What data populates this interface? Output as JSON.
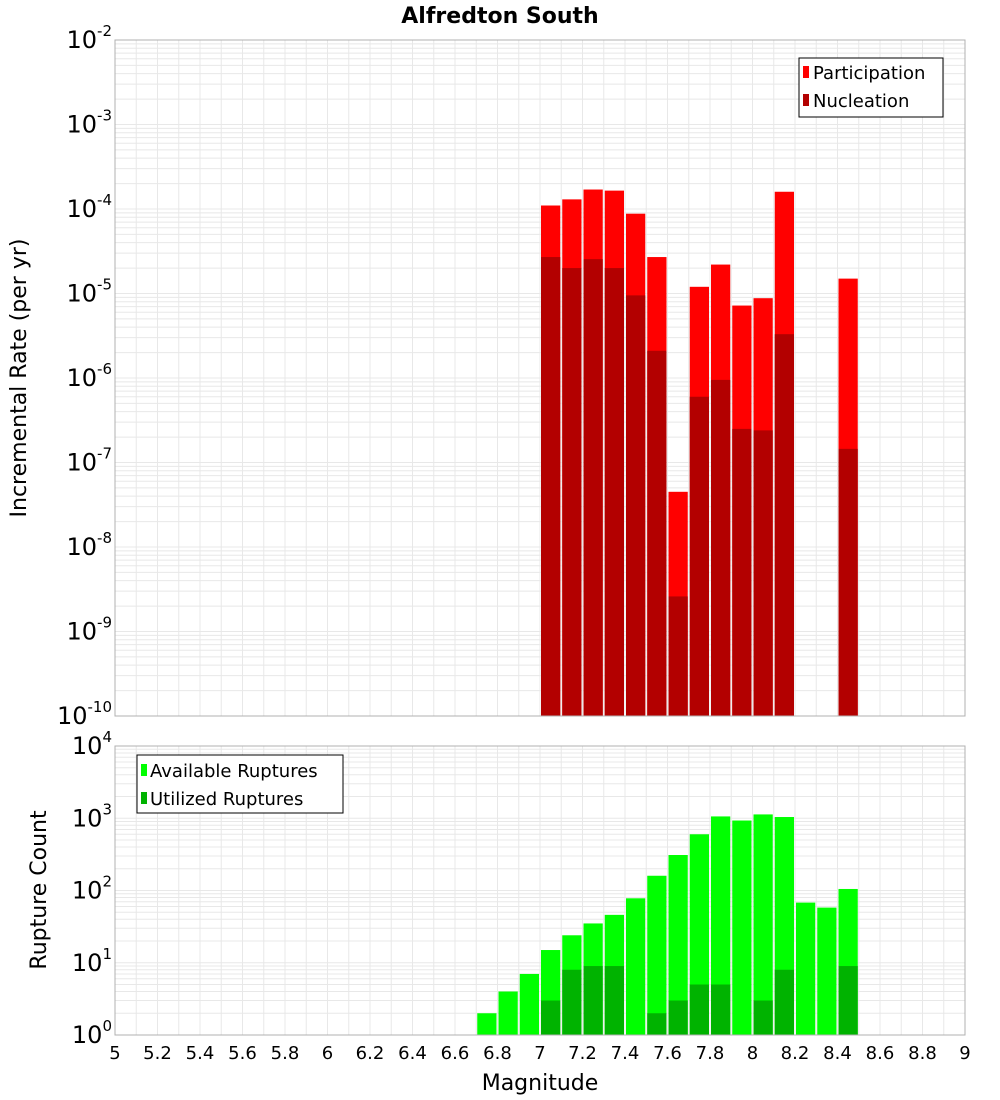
{
  "colors": {
    "participation": "#ff0000",
    "nucleation": "#b30000",
    "available": "#00ff00",
    "utilized": "#00b300",
    "grid": "#e8e8e8",
    "frame": "#b0b0b0"
  },
  "chart_data": [
    {
      "type": "bar",
      "title": "Alfredton South",
      "xlabel": "Magnitude",
      "ylabel": "Incremental Rate (per yr)",
      "yscale": "log",
      "ylim_exp": [
        -10,
        -2
      ],
      "xlim": [
        5,
        9
      ],
      "bin_width": 0.1,
      "legend": [
        "Participation",
        "Nucleation"
      ],
      "legend_position": "top-right",
      "series": [
        {
          "name": "Participation",
          "x": [
            7.05,
            7.15,
            7.25,
            7.35,
            7.45,
            7.55,
            7.65,
            7.75,
            7.85,
            7.95,
            8.05,
            8.15,
            8.45
          ],
          "values": [
            0.00011,
            0.00013,
            0.00017,
            0.000165,
            8.8e-05,
            2.7e-05,
            4.5e-08,
            1.2e-05,
            2.2e-05,
            7.2e-06,
            8.8e-06,
            0.00016,
            1.5e-05
          ]
        },
        {
          "name": "Nucleation",
          "x": [
            7.05,
            7.15,
            7.25,
            7.35,
            7.45,
            7.55,
            7.65,
            7.75,
            7.85,
            7.95,
            8.05,
            8.15,
            8.45
          ],
          "values": [
            2.7e-05,
            2e-05,
            2.55e-05,
            2e-05,
            9.5e-06,
            2.1e-06,
            2.6e-09,
            6e-07,
            9.5e-07,
            2.5e-07,
            2.4e-07,
            3.3e-06,
            1.45e-07
          ]
        }
      ]
    },
    {
      "type": "bar",
      "xlabel": "Magnitude",
      "ylabel": "Rupture Count",
      "yscale": "log",
      "ylim_exp": [
        0,
        4
      ],
      "xlim": [
        5,
        9
      ],
      "bin_width": 0.1,
      "legend": [
        "Available Ruptures",
        "Utilized Ruptures"
      ],
      "legend_position": "top-left",
      "series": [
        {
          "name": "Available Ruptures",
          "x": [
            6.45,
            6.65,
            6.75,
            6.85,
            6.95,
            7.05,
            7.15,
            7.25,
            7.35,
            7.45,
            7.55,
            7.65,
            7.75,
            7.85,
            7.95,
            8.05,
            8.15,
            8.25,
            8.35,
            8.45
          ],
          "values": [
            1,
            1,
            2,
            4,
            7,
            15,
            24,
            35,
            46,
            78,
            160,
            310,
            600,
            1060,
            930,
            1130,
            1040,
            68,
            58,
            105
          ]
        },
        {
          "name": "Utilized Ruptures",
          "x": [
            6.45,
            6.65,
            6.75,
            6.85,
            6.95,
            7.05,
            7.15,
            7.25,
            7.35,
            7.45,
            7.55,
            7.65,
            7.75,
            7.85,
            7.95,
            8.05,
            8.15,
            8.25,
            8.35,
            8.45
          ],
          "values": [
            0,
            0,
            0,
            0,
            0,
            3,
            8,
            9,
            9,
            1,
            2,
            3,
            5,
            5,
            1,
            3,
            8,
            0,
            0,
            9
          ]
        }
      ],
      "xticks": [
        "5",
        "5.2",
        "5.4",
        "5.6",
        "5.8",
        "6",
        "6.2",
        "6.4",
        "6.6",
        "6.8",
        "7",
        "7.2",
        "7.4",
        "7.6",
        "7.8",
        "8",
        "8.2",
        "8.4",
        "8.6",
        "8.8",
        "9"
      ]
    }
  ]
}
